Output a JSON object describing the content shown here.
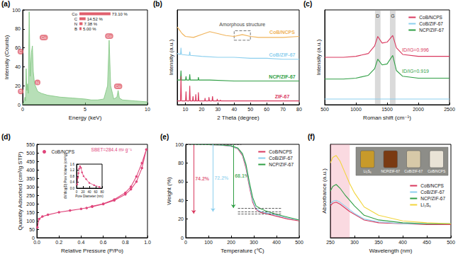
{
  "chart_data": [
    {
      "panel": "(a)",
      "type": "area",
      "x_label": "Energy (keV)",
      "y_label": "Intensity (Counts)",
      "xlim": [
        0,
        10
      ],
      "xticks": [
        0,
        5,
        10
      ],
      "ylim": [
        0,
        100
      ],
      "yticks": [
        0,
        20,
        40,
        60,
        80,
        100
      ],
      "color": "#7cc47c",
      "x": [
        0,
        0.1,
        0.18,
        0.23,
        0.28,
        0.33,
        0.39,
        0.45,
        0.52,
        0.6,
        0.7,
        0.78,
        0.85,
        0.95,
        1.2,
        1.5,
        2,
        3,
        4,
        5,
        5.5,
        6,
        6.5,
        6.8,
        6.93,
        7.05,
        7.3,
        7.55,
        7.65,
        7.75,
        8,
        9,
        10
      ],
      "values": [
        0,
        3,
        8,
        4,
        38,
        15,
        22,
        12,
        98,
        30,
        55,
        62,
        35,
        22,
        14,
        12,
        10,
        8,
        7,
        6,
        5,
        5,
        6,
        20,
        68,
        20,
        6,
        8,
        15,
        7,
        5,
        4,
        3
      ],
      "peak_labels": [
        {
          "text": "B",
          "x": 0.18,
          "y": 8
        },
        {
          "text": "C",
          "x": 0.28,
          "y": 38
        },
        {
          "text": "N",
          "x": 0.39,
          "y": 22
        },
        {
          "text": "Co",
          "x": 0.78,
          "y": 62
        },
        {
          "text": "Co",
          "x": 6.93,
          "y": 68
        },
        {
          "text": "Co",
          "x": 7.65,
          "y": 15
        }
      ],
      "inset": {
        "type": "bar",
        "orientation": "horizontal",
        "categories": [
          "Co",
          "C",
          "N",
          "B"
        ],
        "values": [
          73.1,
          14.52,
          7.38,
          5.0
        ],
        "value_labels": [
          "73.10 %",
          "14.52 %",
          "7.38 %",
          "5.00 %"
        ],
        "color": "#e0606e",
        "xlim": [
          0,
          100
        ],
        "tick_labels": "y",
        "data_labels": true
      }
    },
    {
      "panel": "(b)",
      "type": "line",
      "x_label": "2 Theta (degree)",
      "y_label": "Intensity (a.u.)",
      "xlim": [
        5,
        80
      ],
      "xticks": [
        10,
        20,
        30,
        40,
        50,
        60,
        70,
        80
      ],
      "ylim": [
        0,
        100
      ],
      "tick_labels": "x",
      "series": [
        {
          "name": "CoB/NCPS",
          "color": "#f0b35a",
          "x": [
            5,
            8,
            10,
            15,
            20,
            25,
            30,
            35,
            40,
            45,
            50,
            55,
            60,
            70,
            80
          ],
          "values": [
            82,
            75,
            72,
            71,
            74,
            77,
            75,
            73,
            72,
            74,
            72,
            71,
            71,
            71,
            72
          ]
        },
        {
          "name": "CoB/ZIF-67",
          "color": "#8ccfee",
          "x": [
            5,
            7,
            7.3,
            7.6,
            12.4,
            12.7,
            13,
            20,
            30,
            40,
            50,
            60,
            70,
            80
          ],
          "values": [
            54,
            53,
            60,
            53,
            52,
            56,
            52,
            51,
            50,
            50,
            49,
            49,
            48,
            48
          ]
        },
        {
          "name": "NCP/ZIF-67",
          "color": "#2f9e44",
          "x": [
            5,
            7,
            7.3,
            7.6,
            10.1,
            10.4,
            10.7,
            12.4,
            12.7,
            13,
            17.8,
            18,
            18.3,
            25,
            40,
            60,
            80
          ],
          "values": [
            26,
            26,
            36,
            26,
            26,
            30,
            26,
            26,
            32,
            26,
            26,
            29,
            26,
            26,
            25,
            25,
            25
          ]
        },
        {
          "name": "ZIF-67",
          "color": "#d9385e",
          "x": [
            5,
            7,
            7.3,
            7.6,
            10.1,
            10.4,
            10.7,
            12.4,
            12.7,
            13,
            14.4,
            14.7,
            15,
            16.2,
            16.4,
            16.7,
            17.8,
            18,
            18.3,
            21.9,
            22.1,
            22.3,
            24.3,
            24.5,
            24.8,
            26.4,
            26.7,
            27,
            29.4,
            29.6,
            29.9,
            31.3,
            31.5,
            31.8,
            40,
            50,
            60,
            70,
            80
          ],
          "values": [
            4,
            4,
            30,
            4,
            4,
            14,
            4,
            4,
            20,
            4,
            4,
            9,
            4,
            4,
            11,
            4,
            4,
            13,
            4,
            4,
            7,
            4,
            4,
            8,
            4,
            4,
            9,
            4,
            4,
            6,
            4,
            4,
            5,
            4,
            4,
            4,
            4,
            4,
            4
          ]
        }
      ],
      "annotation": {
        "text": "Amorphous structure",
        "series": "CoB/NCPS",
        "x": [
          40,
          50
        ]
      }
    },
    {
      "panel": "(c)",
      "type": "line",
      "x_label": "Roman shift (cm⁻¹)",
      "y_label": "Intensity (a.u.)",
      "xlim": [
        500,
        2500
      ],
      "xticks": [
        500,
        1000,
        1500,
        2000,
        2500
      ],
      "ylim": [
        0,
        100
      ],
      "tick_labels": "x",
      "legend": "upper right",
      "bands": [
        {
          "label": "D",
          "x": 1350
        },
        {
          "label": "G",
          "x": 1590
        }
      ],
      "series": [
        {
          "name": "CoB/NCPS",
          "color": "#d9385e",
          "x": [
            500,
            800,
            1000,
            1200,
            1300,
            1350,
            1420,
            1500,
            1590,
            1650,
            1750,
            2000,
            2500
          ],
          "values": [
            50,
            50,
            51,
            54,
            62,
            72,
            65,
            66,
            73,
            60,
            53,
            51,
            51
          ],
          "ratio_label": "ID/IG=0.996"
        },
        {
          "name": "CoB/ZIF-67",
          "color": "#8ccfee",
          "x": [
            500,
            1000,
            1500,
            2000,
            2500
          ],
          "values": [
            6,
            6,
            6,
            6,
            6
          ]
        },
        {
          "name": "NCP/ZIF-67",
          "color": "#2f9e44",
          "x": [
            500,
            800,
            1000,
            1200,
            1300,
            1350,
            1420,
            1500,
            1590,
            1650,
            1750,
            2000,
            2500
          ],
          "values": [
            27,
            27,
            28,
            31,
            38,
            48,
            42,
            43,
            52,
            36,
            30,
            28,
            28
          ],
          "ratio_label": "ID/IG=0.919"
        }
      ]
    },
    {
      "panel": "(d)",
      "type": "line",
      "x_label": "Relative Pressure (P/Po)",
      "y_label": "Quantity Adsorbed (cm³/g STP)",
      "xlim": [
        0,
        1
      ],
      "xticks": [
        {
          "value": 0,
          "label": "0.0"
        },
        {
          "value": 0.2,
          "label": "0.2"
        },
        {
          "value": 0.4,
          "label": "0.4"
        },
        {
          "value": 0.6,
          "label": "0.6"
        },
        {
          "value": 0.8,
          "label": "0.8"
        },
        {
          "value": 1,
          "label": "1.0"
        }
      ],
      "ylim": [
        0,
        550
      ],
      "yticks": [
        0,
        50,
        100,
        150,
        200,
        250,
        300,
        350,
        400,
        450,
        500,
        550
      ],
      "legend": "upper left",
      "annotation": "SBET=284.4 m² g⁻¹",
      "series": [
        {
          "name": "CoB/NCPS",
          "color": "#e0457b",
          "marker": "circle",
          "x": [
            0.005,
            0.02,
            0.05,
            0.1,
            0.2,
            0.3,
            0.4,
            0.5,
            0.6,
            0.7,
            0.8,
            0.85,
            0.9,
            0.95,
            0.99,
            0.95,
            0.9,
            0.85,
            0.8,
            0.7,
            0.6,
            0.5,
            0.45
          ],
          "values": [
            60,
            110,
            125,
            135,
            150,
            160,
            170,
            182,
            198,
            220,
            255,
            285,
            330,
            410,
            520,
            440,
            360,
            300,
            265,
            225,
            200,
            185,
            175
          ]
        }
      ],
      "inset": {
        "type": "line",
        "x_label": "Pore Diameter (nm)",
        "y_label": "dV/dlog(D) Pore Volume (cm³/g)",
        "xlim": [
          0,
          80
        ],
        "xticks": [
          0,
          20,
          40,
          60,
          80
        ],
        "ylim": [
          0,
          1.6
        ],
        "yticks": [
          {
            "value": 0,
            "label": "0.0"
          },
          0.4,
          0.8,
          1.2,
          1.6
        ],
        "color": "#e0457b",
        "marker": "circle",
        "x": [
          2,
          4,
          6,
          8,
          11,
          14,
          17,
          22,
          30,
          40,
          55,
          72
        ],
        "values": [
          0.25,
          0.7,
          1.0,
          1.3,
          1.45,
          1.35,
          1.05,
          0.8,
          0.6,
          0.35,
          0.2,
          0.08
        ]
      }
    },
    {
      "panel": "(e)",
      "type": "line",
      "x_label": "Temperature (℃)",
      "y_label": "Weight (%)",
      "xlim": [
        0,
        500
      ],
      "xticks": [
        0,
        100,
        200,
        300,
        400,
        500
      ],
      "ylim": [
        0,
        100
      ],
      "yticks": [
        0,
        20,
        40,
        60,
        80,
        100
      ],
      "legend": "upper right",
      "series": [
        {
          "name": "CoB/NCPS",
          "color": "#d9385e",
          "x": [
            25,
            100,
            150,
            200,
            230,
            250,
            265,
            280,
            295,
            310,
            330,
            350,
            400,
            450,
            500
          ],
          "values": [
            100,
            99.6,
            99.2,
            98,
            95,
            88,
            75,
            55,
            38,
            30,
            27,
            26,
            23,
            20,
            18
          ],
          "loss": 74.2,
          "loss_label": "74.2%"
        },
        {
          "name": "CoB/ZIF-67",
          "color": "#8ccfee",
          "x": [
            25,
            100,
            150,
            200,
            230,
            250,
            265,
            280,
            295,
            310,
            330,
            350,
            400,
            450,
            500
          ],
          "values": [
            100,
            99.7,
            99.3,
            98.2,
            95.5,
            89,
            77,
            57,
            40,
            31,
            28,
            27,
            24,
            21,
            19
          ],
          "loss": 72.2,
          "loss_label": "72.2%"
        },
        {
          "name": "NCP/ZIF-67",
          "color": "#2f9e44",
          "x": [
            25,
            100,
            150,
            200,
            230,
            250,
            265,
            280,
            295,
            310,
            330,
            350,
            400,
            450,
            500
          ],
          "values": [
            100,
            99.7,
            99.4,
            98.5,
            96,
            90,
            79,
            60,
            43,
            34,
            31,
            29,
            25,
            22,
            19
          ],
          "loss": 68.1,
          "loss_label": "68.1%"
        }
      ]
    },
    {
      "panel": "(f)",
      "type": "line",
      "x_label": "Wavelength (nm)",
      "y_label": "Absorbance (a.u.)",
      "xlim": [
        250,
        500
      ],
      "xticks": [
        250,
        300,
        350,
        400,
        450,
        500
      ],
      "ylim": [
        0,
        100
      ],
      "tick_labels": "x",
      "legend": "center right",
      "shaded_range": [
        250,
        290
      ],
      "series": [
        {
          "name": "CoB/NCPS",
          "color": "#d9385e",
          "x": [
            250,
            255,
            262,
            270,
            280,
            290,
            300,
            320,
            350,
            400,
            450,
            500
          ],
          "values": [
            34,
            37,
            38,
            36,
            32,
            28,
            25,
            19,
            16,
            15,
            14,
            14
          ]
        },
        {
          "name": "CoB/ZIF-67",
          "color": "#8ccfee",
          "x": [
            250,
            255,
            262,
            270,
            280,
            290,
            300,
            320,
            350,
            400,
            450,
            500
          ],
          "values": [
            36,
            39,
            40,
            38,
            34,
            30,
            26,
            20,
            17,
            15,
            15,
            15
          ]
        },
        {
          "name": "NCP/ZIF-67",
          "color": "#2f9e44",
          "x": [
            250,
            255,
            262,
            270,
            280,
            290,
            300,
            320,
            350,
            400,
            450,
            500
          ],
          "values": [
            50,
            55,
            57,
            53,
            46,
            40,
            34,
            24,
            19,
            16,
            15,
            15
          ]
        },
        {
          "name": "Li₂S₆",
          "color": "#f2d53c",
          "x": [
            250,
            255,
            262,
            270,
            280,
            290,
            300,
            320,
            350,
            400,
            450,
            500
          ],
          "values": [
            80,
            86,
            88,
            82,
            70,
            58,
            48,
            33,
            24,
            18,
            16,
            15
          ]
        }
      ],
      "inset": {
        "type": "image",
        "labels": [
          "Li₂S₆",
          "NCP/ZIF-67",
          "CoB/ZIF-67",
          "CoB/NCPS"
        ],
        "colors": [
          "#c89a2a",
          "#7a3a12",
          "#d7c9a8",
          "#e9e3d6"
        ]
      }
    }
  ]
}
